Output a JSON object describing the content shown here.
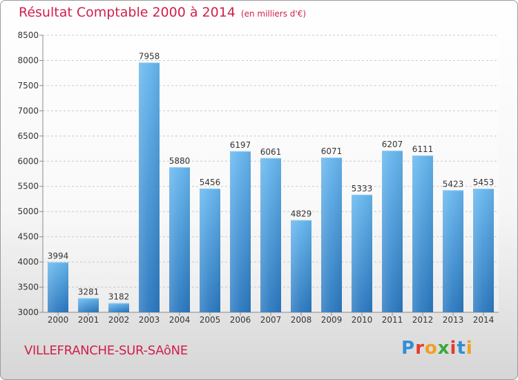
{
  "title": "Résultat Comptable 2000 à 2014",
  "unit_note": "(en milliers d'€)",
  "commune": "VILLEFRANCHE-SUR-SAôNE",
  "logo": {
    "text": "Proxiti",
    "colors": [
      "#2f8fd8",
      "#e63a2e",
      "#f0a020",
      "#3aa83a",
      "#e63a2e",
      "#2f8fd8",
      "#f0a020"
    ]
  },
  "chart_data": {
    "type": "bar",
    "title": "Résultat Comptable 2000 à 2014",
    "xlabel": "",
    "ylabel": "",
    "categories": [
      "2000",
      "2001",
      "2002",
      "2003",
      "2004",
      "2005",
      "2006",
      "2007",
      "2008",
      "2009",
      "2010",
      "2011",
      "2012",
      "2013",
      "2014"
    ],
    "values": [
      3994,
      3281,
      3182,
      7958,
      5880,
      5456,
      6197,
      6061,
      4829,
      6071,
      5333,
      6207,
      6111,
      5423,
      5453
    ],
    "ylim": [
      3000,
      8500
    ],
    "yticks": [
      3000,
      3500,
      4000,
      4500,
      5000,
      5500,
      6000,
      6500,
      7000,
      7500,
      8000,
      8500
    ],
    "grid": true,
    "bar_color": "#3a93d8"
  }
}
